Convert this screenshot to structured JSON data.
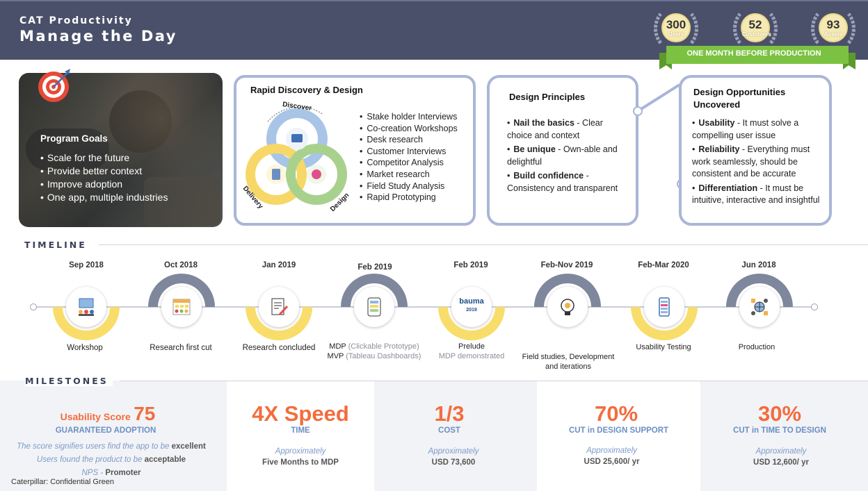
{
  "header": {
    "subtitle": "CAT Productivity",
    "title": "Manage the Day",
    "stats": [
      {
        "value": "300",
        "label": "Users"
      },
      {
        "value": "52",
        "label": "Customers"
      },
      {
        "value": "93",
        "label": "Assets"
      }
    ],
    "ribbon": "ONE MONTH BEFORE PRODUCTION",
    "colors": {
      "header_bg": "#4a5069",
      "ribbon_green": "#7cc242",
      "accent_orange": "#f26d3d"
    }
  },
  "program_goals": {
    "title": "Program Goals",
    "items": [
      "Scale for the future",
      "Provide better context",
      "Improve adoption",
      "One app, multiple industries"
    ]
  },
  "rapid_discovery": {
    "title": "Rapid Discovery & Design",
    "cycle": [
      "Discover",
      "Design",
      "Delivery"
    ],
    "items": [
      "Stake holder Interviews",
      "Co-creation Workshops",
      "Desk research",
      "Customer Interviews",
      "Competitor Analysis",
      "Market research",
      "Field Study Analysis",
      "Rapid Prototyping"
    ]
  },
  "design_principles": {
    "title": "Design Principles",
    "items": [
      {
        "bold": "Nail the basics",
        "text": " - Clear choice and context"
      },
      {
        "bold": "Be unique",
        "text": " - Own-able and delightful"
      },
      {
        "bold": "Build confidence",
        "text": " - Consistency and transparent"
      }
    ]
  },
  "design_opportunities": {
    "title": "Design Opportunities Uncovered",
    "items": [
      {
        "bold": "Usability",
        "text": " - It must solve a compelling user issue"
      },
      {
        "bold": "Reliability",
        "text": " - Everything must work seamlessly, should be consistent and be accurate"
      },
      {
        "bold": "Differentiation",
        "text": " - It must be intuitive, interactive and insightful"
      }
    ]
  },
  "timeline": {
    "title": "TIMELINE",
    "events": [
      {
        "date": "Sep 2018",
        "label": "Workshop",
        "sub": "",
        "icon": "workshop-icon"
      },
      {
        "date": "Oct 2018",
        "label": "Research first cut",
        "sub": "",
        "icon": "calendar-grid-icon"
      },
      {
        "date": "Jan 2019",
        "label": "Research concluded",
        "sub": "",
        "icon": "document-pen-icon"
      },
      {
        "date": "Feb 2019",
        "label": "MDP",
        "sub": "(Clickable Prototype)",
        "label2": "MVP",
        "sub2": "(Tableau Dashboards)",
        "icon": "tablet-prototype-icon"
      },
      {
        "date": "Feb 2019",
        "label": "Prelude",
        "sub": "MDP demonstrated",
        "icon": "bauma-logo-icon",
        "icon_text": "bauma",
        "icon_year": "2019"
      },
      {
        "date": "Feb-Nov 2019",
        "label": "Field studies, Development and iterations",
        "sub": "",
        "icon": "lightbulb-gear-icon"
      },
      {
        "date": "Feb-Mar 2020",
        "label": "Usability Testing",
        "sub": "",
        "icon": "mobile-checklist-icon"
      },
      {
        "date": "Jun 2018",
        "label": "Production",
        "sub": "",
        "icon": "globe-gear-icon"
      }
    ]
  },
  "milestones": {
    "title": "MILESTONES",
    "items": [
      {
        "small": "Usability Score",
        "big": "75",
        "caption": "GUARANTEED ADOPTION"
      },
      {
        "big": "4X Speed",
        "caption": "TIME",
        "approx": "Approximately",
        "value": "Five Months to MDP"
      },
      {
        "big": "1/3",
        "caption": "COST",
        "approx": "Approximately",
        "value": "USD 73,600"
      },
      {
        "big": "70%",
        "caption": "CUT in DESIGN SUPPORT",
        "approx": "Approximately",
        "value": "USD 25,600/ yr"
      },
      {
        "big": "30%",
        "caption": "CUT in TIME TO DESIGN",
        "approx": "Approximately",
        "value": "USD 12,600/ yr"
      }
    ],
    "score_notes": {
      "line1": "The score signifies users find the app to be",
      "line1_bold": "excellent",
      "line2": "Users found the product to be",
      "line2_bold": "acceptable",
      "line3": "NPS -",
      "line3_bold": "Promoter"
    }
  },
  "footer": "Caterpillar: Confidential Green"
}
